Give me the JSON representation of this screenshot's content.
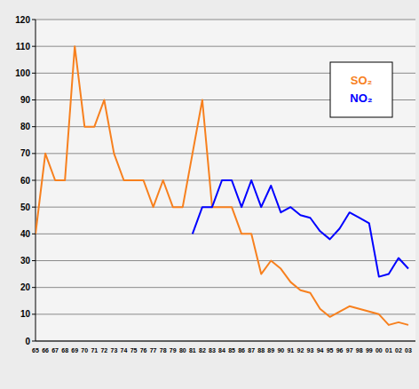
{
  "chart_data": {
    "type": "line",
    "categories": [
      "65",
      "66",
      "67",
      "68",
      "69",
      "70",
      "71",
      "72",
      "73",
      "74",
      "75",
      "76",
      "77",
      "78",
      "79",
      "80",
      "81",
      "82",
      "83",
      "84",
      "85",
      "86",
      "87",
      "88",
      "89",
      "90",
      "91",
      "92",
      "93",
      "94",
      "95",
      "96",
      "97",
      "98",
      "99",
      "00",
      "01",
      "02",
      "03"
    ],
    "series": [
      {
        "name": "SO₂",
        "color": "#f7801e",
        "values": [
          40,
          70,
          60,
          60,
          110,
          80,
          80,
          90,
          70,
          60,
          60,
          60,
          50,
          60,
          50,
          50,
          70,
          90,
          50,
          50,
          50,
          40,
          40,
          25,
          30,
          27,
          22,
          19,
          18,
          12,
          9,
          11,
          13,
          12,
          11,
          10,
          6,
          7,
          6
        ]
      },
      {
        "name": "NO₂",
        "color": "#0000ff",
        "values": [
          null,
          null,
          null,
          null,
          null,
          null,
          null,
          null,
          null,
          null,
          null,
          null,
          null,
          null,
          null,
          null,
          40,
          50,
          50,
          60,
          60,
          50,
          60,
          50,
          58,
          48,
          50,
          47,
          46,
          41,
          38,
          42,
          48,
          46,
          44,
          24,
          25,
          31,
          27
        ]
      }
    ],
    "ylim": [
      0,
      120
    ],
    "yticks": [
      0,
      10,
      20,
      30,
      40,
      50,
      60,
      70,
      80,
      90,
      100,
      110,
      120
    ],
    "grid": true,
    "legend": "top-right"
  }
}
